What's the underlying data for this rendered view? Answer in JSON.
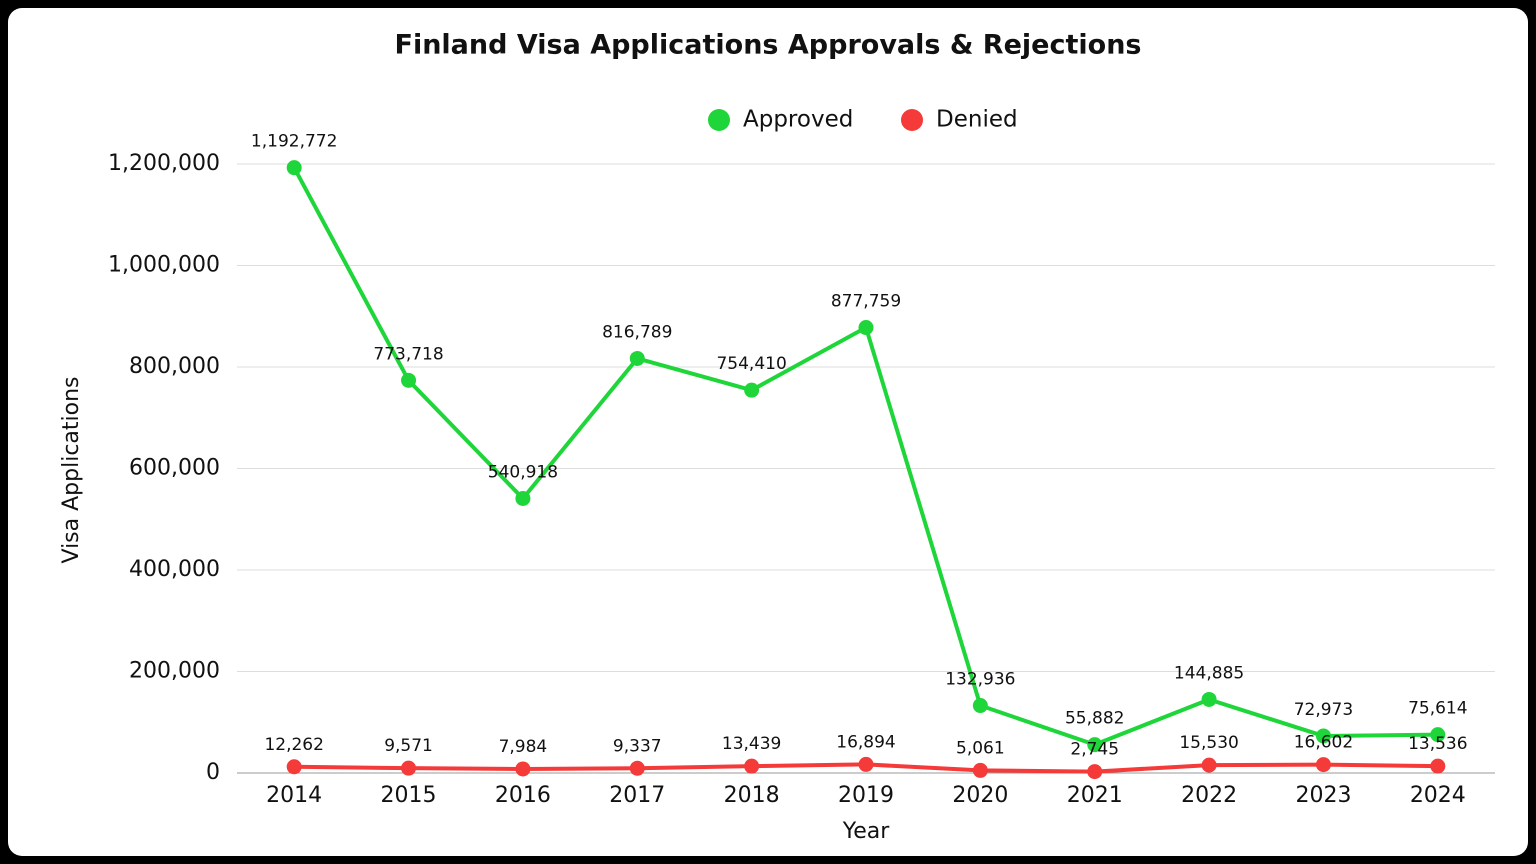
{
  "chart_data": {
    "type": "line",
    "title": "Finland Visa Applications Approvals & Rejections",
    "x_label": "Year",
    "y_label": "Visa Applications",
    "categories": [
      "2014",
      "2015",
      "2016",
      "2017",
      "2018",
      "2019",
      "2020",
      "2021",
      "2022",
      "2023",
      "2024"
    ],
    "series": [
      {
        "name": "Approved",
        "color": "#1fd63a",
        "values": [
          1192772,
          773718,
          540918,
          816789,
          754410,
          877759,
          132936,
          55882,
          144885,
          72973,
          75614
        ],
        "value_labels": [
          "1,192,772",
          "773,718",
          "540,918",
          "816,789",
          "754,410",
          "877,759",
          "132,936",
          "55,882",
          "144,885",
          "72,973",
          "75,614"
        ]
      },
      {
        "name": "Denied",
        "color": "#f53a3a",
        "values": [
          12262,
          9571,
          7984,
          9337,
          13439,
          16894,
          5061,
          2745,
          15530,
          16602,
          13536
        ],
        "value_labels": [
          "12,262",
          "9,571",
          "7,984",
          "9,337",
          "13,439",
          "16,894",
          "5,061",
          "2,745",
          "15,530",
          "16,602",
          "13,536"
        ]
      }
    ],
    "ylim": [
      0,
      1200000
    ],
    "yticks": [
      0,
      {
        "value": 200000,
        "label": "200,000"
      },
      {
        "value": 400000,
        "label": "400,000"
      },
      {
        "value": 600000,
        "label": "600,000"
      },
      {
        "value": 800000,
        "label": "800,000"
      },
      {
        "value": 1000000,
        "label": "1,000,000"
      },
      {
        "value": 1200000,
        "label": "1,200,000"
      }
    ],
    "grid": true,
    "legend": "top"
  }
}
